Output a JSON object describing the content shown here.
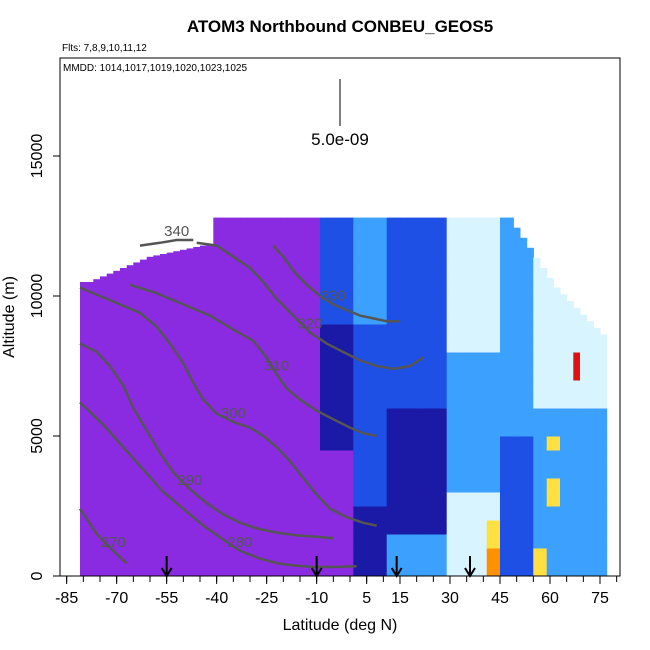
{
  "chart_data": {
    "type": "heatmap",
    "title": "ATOM3 Northbound CONBEU_GEOS5",
    "flights_label": "Flts: 7,8,9,10,11,12",
    "dates_label": "MMDD: 1014,1017,1019,1020,1023,1025",
    "scale_label": "5.0e-09",
    "xlabel": "Latitude (deg N)",
    "ylabel": "Altitude (m)",
    "xlim": [
      -87,
      81
    ],
    "ylim": [
      0,
      18500
    ],
    "x_ticks": [
      -85,
      -70,
      -55,
      -40,
      -25,
      -10,
      5,
      15,
      30,
      45,
      60,
      75
    ],
    "x_minor_step": 5,
    "y_ticks": [
      0,
      5000,
      10000,
      15000
    ],
    "arrow_latitudes": [
      -55,
      -10,
      14,
      36
    ],
    "isentropes": [
      {
        "label": "270",
        "x": [
          -81,
          -76,
          -71,
          -67
        ],
        "y": [
          2400,
          1500,
          900,
          450
        ]
      },
      {
        "label": "280",
        "x": [
          -81,
          -74,
          -68,
          -62,
          -56,
          -50,
          -44,
          -38,
          -33,
          -27,
          -22,
          -17,
          -12,
          -6,
          -2,
          2
        ],
        "y": [
          6200,
          5400,
          4600,
          3800,
          3000,
          2400,
          1800,
          1300,
          900,
          620,
          460,
          380,
          330,
          320,
          330,
          350
        ]
      },
      {
        "label": "290",
        "x": [
          -81,
          -76,
          -72,
          -68,
          -65,
          -61,
          -57,
          -53,
          -48,
          -43,
          -38,
          -33,
          -28,
          -22,
          -16,
          -10,
          -5
        ],
        "y": [
          8300,
          8000,
          7500,
          6800,
          6000,
          5200,
          4400,
          3700,
          3100,
          2600,
          2200,
          1900,
          1700,
          1550,
          1450,
          1400,
          1350
        ]
      },
      {
        "label": "300",
        "x": [
          -81,
          -75,
          -69,
          -63,
          -58,
          -54,
          -50,
          -47,
          -44,
          -40,
          -35,
          -30,
          -26,
          -22,
          -18,
          -14,
          -10,
          -6,
          -1,
          4,
          8
        ],
        "y": [
          10300,
          10000,
          9700,
          9400,
          8900,
          8300,
          7600,
          6900,
          6300,
          5800,
          5500,
          5300,
          5000,
          4600,
          4100,
          3500,
          2900,
          2400,
          2100,
          1900,
          1800
        ]
      },
      {
        "label": "310",
        "x": [
          -66,
          -58,
          -50,
          -42,
          -35,
          -29,
          -25,
          -22,
          -19,
          -15,
          -10,
          -5,
          0,
          4,
          8
        ],
        "y": [
          10400,
          10100,
          9700,
          9300,
          8800,
          8400,
          7800,
          7200,
          6700,
          6300,
          5900,
          5600,
          5300,
          5100,
          5000
        ]
      },
      {
        "label": "320",
        "x": [
          -46,
          -40,
          -35,
          -30,
          -26,
          -22,
          -17,
          -12,
          -7,
          -2,
          3,
          8,
          13,
          18,
          22
        ],
        "y": [
          11900,
          11800,
          11400,
          11000,
          10500,
          9900,
          9300,
          8700,
          8300,
          8000,
          7700,
          7500,
          7400,
          7500,
          7800
        ]
      },
      {
        "label": "330",
        "x": [
          -23,
          -20,
          -17,
          -13,
          -9,
          -5,
          -1,
          3,
          7,
          11,
          15
        ],
        "y": [
          11800,
          11400,
          10900,
          10400,
          10000,
          9700,
          9500,
          9300,
          9200,
          9100,
          9100
        ]
      },
      {
        "label": "340",
        "x": [
          -63,
          -57,
          -52,
          -47
        ],
        "y": [
          11800,
          11900,
          12000,
          12000
        ]
      }
    ],
    "colors": {
      "purple": "#8a2be2",
      "navy": "#1a1aa6",
      "blue": "#1e50e6",
      "cyan": "#3ca0ff",
      "light": "#d8f4ff",
      "yellow": "#ffe040",
      "orange": "#ff9000",
      "red": "#e01010",
      "contour": "#555555"
    }
  }
}
